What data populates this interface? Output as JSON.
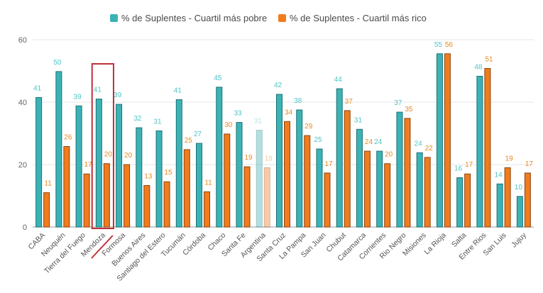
{
  "chart_data": {
    "type": "bar",
    "title": "",
    "xlabel": "",
    "ylabel": "",
    "ylim": [
      0,
      60
    ],
    "yticks": [
      0,
      20,
      40,
      60
    ],
    "grid": true,
    "legend_position": "top-center",
    "categories": [
      "CABA",
      "Neuquén",
      "Tierra del Fuego",
      "Mendoza",
      "Formosa",
      "Buenos Aires",
      "Santiago del Estero",
      "Tucumán",
      "Córdoba",
      "Chaco",
      "Santa Fe",
      "Argentina",
      "Santa Cruz",
      "La Pampa",
      "San Juan",
      "Chubut",
      "Catamarca",
      "Corrientes",
      "Rio Negro",
      "Misiones",
      "La Rioja",
      "Salta",
      "Entre Rios",
      "San Luis",
      "Jujuy"
    ],
    "series": [
      {
        "name": "% de Suplentes - Cuartil más pobre",
        "color": "#3bb3b6",
        "stroke": "#1d6f72",
        "labels": [
          "41",
          "50",
          "39",
          "41",
          "39",
          "32",
          "31",
          "41",
          "27",
          "45",
          "33",
          "31",
          "42",
          "38",
          "25",
          "44",
          "31",
          "24",
          "37",
          "24",
          "55",
          "16",
          "48",
          "14",
          "10"
        ],
        "values": [
          41.5,
          49.8,
          38.8,
          41.0,
          39.3,
          31.8,
          30.8,
          40.8,
          26.8,
          44.8,
          33.5,
          31.0,
          42.5,
          37.5,
          25.0,
          44.3,
          31.3,
          24.3,
          36.8,
          23.8,
          55.5,
          15.8,
          48.3,
          13.8,
          9.8
        ]
      },
      {
        "name": "% de Suplentes - Cuartil más rico",
        "color": "#f07c1d",
        "stroke": "#8a4410",
        "labels": [
          "11",
          "26",
          "17",
          "20",
          "20",
          "13",
          "15",
          "25",
          "11",
          "30",
          "19",
          "19",
          "34",
          "29",
          "17",
          "37",
          "24",
          "20",
          "35",
          "22",
          "56",
          "17",
          "51",
          "19",
          "17"
        ],
        "values": [
          11.0,
          25.8,
          17.0,
          20.3,
          20.0,
          13.3,
          14.5,
          24.8,
          11.3,
          29.8,
          19.3,
          19.0,
          33.8,
          29.3,
          17.3,
          37.3,
          24.3,
          20.3,
          34.8,
          22.3,
          55.5,
          17.0,
          50.8,
          19.0,
          17.3
        ]
      }
    ],
    "highlighted_category": "Mendoza",
    "faded_category": "Argentina",
    "highlight_color": "#c0303a"
  }
}
